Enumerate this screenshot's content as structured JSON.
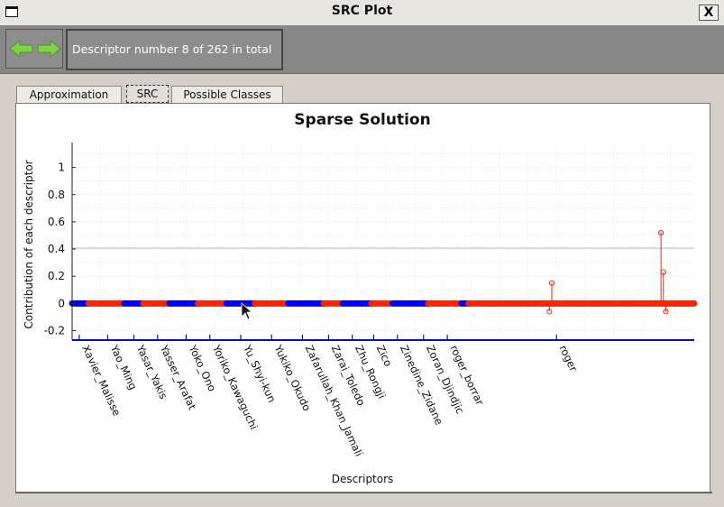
{
  "window": {
    "title": "SRC Plot",
    "close_label": "X"
  },
  "toolbar": {
    "back_icon": "arrow-left-icon",
    "forward_icon": "arrow-right-icon",
    "status": "Descriptor number 8 of 262 in total"
  },
  "tabs": [
    {
      "label": "Approximation"
    },
    {
      "label": "SRC"
    },
    {
      "label": "Possible Classes"
    }
  ],
  "colors": {
    "blue": "#0000ff",
    "red": "#ff2200",
    "arrow_green": "#7fd24a"
  },
  "chart_data": {
    "type": "scatter",
    "title": "Sparse Solution",
    "xlabel": "Descriptors",
    "ylabel": "Contribution of each descriptor",
    "xlim": [
      0,
      262
    ],
    "ylim": [
      -0.27,
      1.17
    ],
    "yticks": [
      -0.2,
      0,
      0.2,
      0.4,
      0.6,
      0.8,
      1
    ],
    "grid": true,
    "class_labels": [
      {
        "name": "Xavier_Malisse",
        "x": 3
      },
      {
        "name": "Yao_Ming",
        "x": 15
      },
      {
        "name": "Yasar_Yakis",
        "x": 26
      },
      {
        "name": "Yasser_Arafat",
        "x": 36
      },
      {
        "name": "Yoko_Ono",
        "x": 48
      },
      {
        "name": "Yoriko_Kawaguchi",
        "x": 58
      },
      {
        "name": "Yu_Shyi-kun",
        "x": 71
      },
      {
        "name": "Yukiko_Okudo",
        "x": 84
      },
      {
        "name": "Zafarullah_Khan_Jamali",
        "x": 97
      },
      {
        "name": "Zarai_Toledo",
        "x": 108
      },
      {
        "name": "Zhu_Rongji",
        "x": 118
      },
      {
        "name": "Zico",
        "x": 127
      },
      {
        "name": "Zinedine_Zidane",
        "x": 137
      },
      {
        "name": "Zoran_Djindjic",
        "x": 148
      },
      {
        "name": "roger_borrar",
        "x": 158
      },
      {
        "name": "roger",
        "x": 204
      }
    ],
    "segments": [
      {
        "x0": 0,
        "x1": 7,
        "color": "blue"
      },
      {
        "x0": 7,
        "x1": 22,
        "color": "red"
      },
      {
        "x0": 22,
        "x1": 30,
        "color": "blue"
      },
      {
        "x0": 30,
        "x1": 41,
        "color": "red"
      },
      {
        "x0": 41,
        "x1": 53,
        "color": "blue"
      },
      {
        "x0": 53,
        "x1": 65,
        "color": "red"
      },
      {
        "x0": 65,
        "x1": 77,
        "color": "blue"
      },
      {
        "x0": 77,
        "x1": 91,
        "color": "red"
      },
      {
        "x0": 91,
        "x1": 106,
        "color": "blue"
      },
      {
        "x0": 106,
        "x1": 114,
        "color": "red"
      },
      {
        "x0": 114,
        "x1": 126,
        "color": "blue"
      },
      {
        "x0": 126,
        "x1": 135,
        "color": "red"
      },
      {
        "x0": 135,
        "x1": 150,
        "color": "blue"
      },
      {
        "x0": 150,
        "x1": 164,
        "color": "red"
      },
      {
        "x0": 164,
        "x1": 167,
        "color": "blue"
      },
      {
        "x0": 167,
        "x1": 262,
        "color": "red"
      }
    ],
    "series": [
      {
        "color": "red",
        "x": [
          201,
          202,
          248,
          249,
          250
        ],
        "y": [
          -0.06,
          0.15,
          0.52,
          0.23,
          -0.06
        ]
      }
    ]
  }
}
